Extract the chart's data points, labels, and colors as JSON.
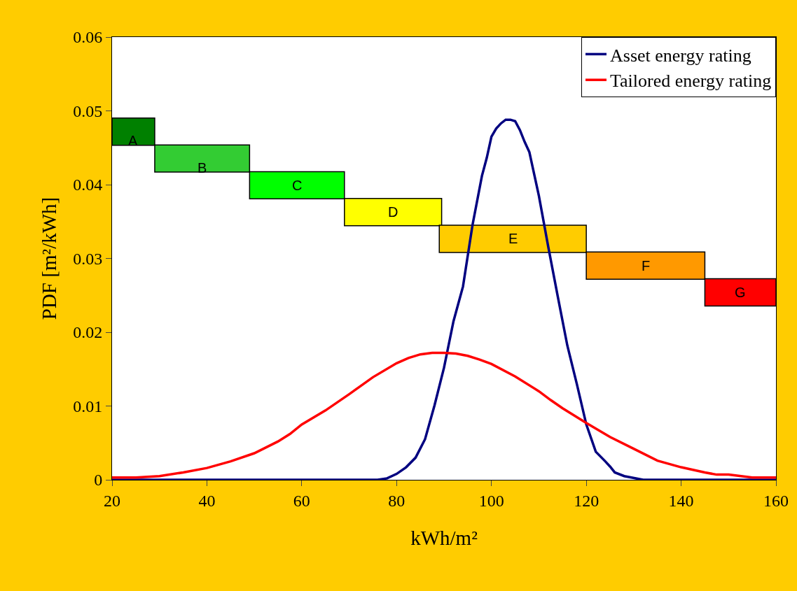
{
  "chart_data": {
    "type": "line",
    "xlabel": "kWh/m²",
    "ylabel": "PDF [m²/kWh]",
    "xlim": [
      20,
      160
    ],
    "xticks": [
      20,
      40,
      60,
      80,
      100,
      120,
      140,
      160
    ],
    "ylim": [
      0,
      0.06
    ],
    "yticks": [
      0,
      0.01,
      0.02,
      0.03,
      0.04,
      0.05,
      0.06
    ],
    "legend": "top right",
    "grid": false,
    "marker": "none",
    "line_style": "solid",
    "series": [
      {
        "name": "Asset energy rating",
        "color": "#000080",
        "x": [
          20,
          70,
          76,
          78,
          80,
          82,
          84,
          86,
          88,
          90,
          92,
          94,
          96,
          98,
          99,
          100,
          101,
          102,
          103,
          104,
          105,
          106,
          107,
          108,
          110,
          112,
          114,
          116,
          118,
          120,
          122,
          124,
          125,
          126,
          128,
          132,
          160
        ],
        "values": [
          0,
          0,
          0,
          0.0002,
          0.0008,
          0.0017,
          0.003,
          0.0055,
          0.0101,
          0.0152,
          0.0215,
          0.0262,
          0.0345,
          0.0412,
          0.0436,
          0.0465,
          0.0476,
          0.0483,
          0.0488,
          0.0488,
          0.0486,
          0.0474,
          0.0458,
          0.0444,
          0.0385,
          0.0315,
          0.0248,
          0.0182,
          0.013,
          0.0075,
          0.0038,
          0.0025,
          0.0018,
          0.001,
          0.0005,
          0,
          0
        ]
      },
      {
        "name": "Tailored energy rating",
        "color": "#ff0000",
        "x": [
          20,
          25,
          30,
          35,
          40,
          45,
          50,
          55,
          57.5,
          60,
          65,
          70,
          75,
          80,
          82.5,
          85,
          87.5,
          90,
          92.5,
          95,
          97.5,
          100,
          105,
          110,
          112.5,
          115,
          120,
          125,
          130,
          135,
          140,
          145,
          147.5,
          150,
          155,
          160
        ],
        "values": [
          0.0003,
          0.0003,
          0.0005,
          0.001,
          0.0016,
          0.0025,
          0.0036,
          0.0052,
          0.0062,
          0.0075,
          0.0094,
          0.0116,
          0.0139,
          0.0158,
          0.0165,
          0.017,
          0.0172,
          0.0172,
          0.0171,
          0.0168,
          0.0163,
          0.0157,
          0.014,
          0.012,
          0.0108,
          0.0097,
          0.0077,
          0.0058,
          0.0042,
          0.0026,
          0.0017,
          0.001,
          0.0007,
          0.0007,
          0.0003,
          0.0003
        ]
      }
    ],
    "bands": [
      {
        "axis": "x",
        "from": 20,
        "to": 29,
        "label": "A",
        "color": "#008000"
      },
      {
        "axis": "x",
        "from": 29,
        "to": 49,
        "label": "B",
        "color": "#33cc33"
      },
      {
        "axis": "x",
        "from": 49,
        "to": 69,
        "label": "C",
        "color": "#00ff00"
      },
      {
        "axis": "x",
        "from": 69,
        "to": 89.5,
        "label": "D",
        "color": "#ffff00"
      },
      {
        "axis": "x",
        "from": 89,
        "to": 120,
        "label": "E",
        "color": "#ffcc00"
      },
      {
        "axis": "x",
        "from": 120,
        "to": 145,
        "label": "F",
        "color": "#ff9900"
      },
      {
        "axis": "x",
        "from": 145,
        "to": 160,
        "label": "G",
        "color": "#ff0000"
      }
    ]
  }
}
